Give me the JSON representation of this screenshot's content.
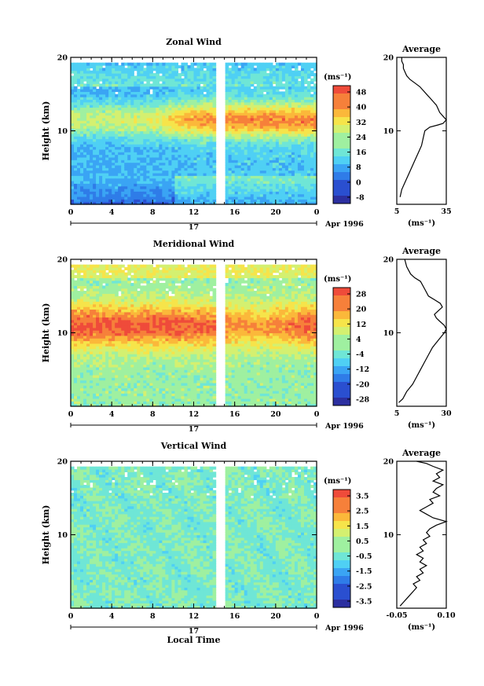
{
  "chart_data": [
    {
      "type": "heatmap",
      "title": "Zonal Wind",
      "ylabel": "Height (km)",
      "ylim": [
        0,
        20
      ],
      "y_ticks": [
        "20",
        "10"
      ],
      "xlim": [
        0,
        24
      ],
      "x_ticks": [
        "0",
        "4",
        "8",
        "12",
        "16",
        "20",
        "0"
      ],
      "date_axis": {
        "day": "17",
        "label": "Apr 1996"
      },
      "colorbar": {
        "unit": "(ms⁻¹)",
        "ticks": [
          "48",
          "40",
          "32",
          "24",
          "16",
          "8",
          "0",
          "-8"
        ],
        "min": -8,
        "max": 52
      },
      "profile": {
        "title": "Average",
        "y_ticks": [
          "20",
          "10"
        ],
        "x_ticks": [
          "5",
          "35"
        ],
        "xlim": [
          5,
          35
        ],
        "xlabel": "(ms⁻¹)",
        "points": [
          [
            7,
            1
          ],
          [
            8,
            2
          ],
          [
            10,
            3
          ],
          [
            12,
            4
          ],
          [
            14,
            5
          ],
          [
            16,
            6
          ],
          [
            18,
            7
          ],
          [
            20,
            8
          ],
          [
            21,
            9
          ],
          [
            22,
            10
          ],
          [
            25,
            10.5
          ],
          [
            30,
            10.8
          ],
          [
            33,
            11
          ],
          [
            35,
            11.5
          ],
          [
            33,
            12
          ],
          [
            31,
            12.5
          ],
          [
            30,
            13
          ],
          [
            29,
            13.5
          ],
          [
            27,
            14
          ],
          [
            25,
            14.5
          ],
          [
            23,
            15
          ],
          [
            21,
            15.5
          ],
          [
            19,
            16
          ],
          [
            16,
            16.5
          ],
          [
            13,
            17
          ],
          [
            11,
            17.5
          ],
          [
            10,
            18
          ],
          [
            9,
            18.5
          ],
          [
            9,
            19
          ],
          [
            8,
            19.5
          ],
          [
            8,
            20
          ]
        ]
      }
    },
    {
      "type": "heatmap",
      "title": "Meridional Wind",
      "ylabel": "Height (km)",
      "ylim": [
        0,
        20
      ],
      "y_ticks": [
        "20",
        "10"
      ],
      "xlim": [
        0,
        24
      ],
      "x_ticks": [
        "0",
        "4",
        "8",
        "12",
        "16",
        "20",
        "0"
      ],
      "date_axis": {
        "day": "17",
        "label": "Apr 1996"
      },
      "colorbar": {
        "unit": "(ms⁻¹)",
        "ticks": [
          "28",
          "20",
          "12",
          "4",
          "-4",
          "-12",
          "-20",
          "-28"
        ],
        "min": -32,
        "max": 32
      },
      "profile": {
        "title": "Average",
        "y_ticks": [
          "20",
          "10"
        ],
        "x_ticks": [
          "5",
          "30"
        ],
        "xlim": [
          5,
          30
        ],
        "xlabel": "(ms⁻¹)",
        "points": [
          [
            6,
            0.5
          ],
          [
            8,
            1
          ],
          [
            10,
            2
          ],
          [
            13,
            3
          ],
          [
            15,
            4
          ],
          [
            17,
            5
          ],
          [
            19,
            6
          ],
          [
            21,
            7
          ],
          [
            23,
            8
          ],
          [
            26,
            9
          ],
          [
            29,
            10
          ],
          [
            30,
            10.5
          ],
          [
            29,
            11
          ],
          [
            27,
            11.5
          ],
          [
            25,
            12
          ],
          [
            24,
            12.5
          ],
          [
            26,
            13
          ],
          [
            28,
            13.5
          ],
          [
            27,
            14
          ],
          [
            24,
            14.5
          ],
          [
            21,
            15
          ],
          [
            19,
            16
          ],
          [
            17,
            17
          ],
          [
            14,
            17.5
          ],
          [
            12,
            18
          ],
          [
            10,
            19
          ],
          [
            9,
            20
          ]
        ]
      }
    },
    {
      "type": "heatmap",
      "title": "Vertical Wind",
      "ylabel": "Height (km)",
      "ylim": [
        0,
        20
      ],
      "y_ticks": [
        "20",
        "10"
      ],
      "xlim": [
        0,
        24
      ],
      "x_ticks": [
        "0",
        "4",
        "8",
        "12",
        "16",
        "20",
        "0"
      ],
      "date_axis": {
        "day": "17",
        "label": "Apr 1996"
      },
      "xlabel": "Local Time",
      "colorbar": {
        "unit": "(ms⁻¹)",
        "ticks": [
          "3.5",
          "2.5",
          "1.5",
          "0.5",
          "-0.5",
          "-1.5",
          "-2.5",
          "-3.5"
        ],
        "min": -4,
        "max": 4
      },
      "profile": {
        "title": "Average",
        "y_ticks": [
          "20",
          "10"
        ],
        "x_ticks": [
          "-0.05",
          "0.10"
        ],
        "xlim": [
          -0.05,
          0.1
        ],
        "xlabel": "(ms⁻¹)",
        "points": [
          [
            -0.04,
            0.3
          ],
          [
            -0.03,
            0.8
          ],
          [
            -0.02,
            1.3
          ],
          [
            -0.01,
            1.8
          ],
          [
            0.0,
            2.3
          ],
          [
            0.01,
            2.8
          ],
          [
            0.0,
            3.3
          ],
          [
            0.02,
            3.8
          ],
          [
            0.01,
            4.3
          ],
          [
            0.03,
            4.8
          ],
          [
            0.02,
            5.3
          ],
          [
            0.04,
            5.8
          ],
          [
            0.02,
            6.3
          ],
          [
            0.03,
            6.8
          ],
          [
            0.01,
            7.3
          ],
          [
            0.03,
            7.8
          ],
          [
            0.02,
            8.3
          ],
          [
            0.04,
            8.8
          ],
          [
            0.03,
            9.3
          ],
          [
            0.05,
            9.8
          ],
          [
            0.04,
            10.3
          ],
          [
            0.05,
            10.8
          ],
          [
            0.07,
            11.3
          ],
          [
            0.1,
            11.8
          ],
          [
            0.06,
            12.3
          ],
          [
            0.04,
            12.8
          ],
          [
            0.02,
            13.3
          ],
          [
            0.04,
            13.8
          ],
          [
            0.06,
            14.3
          ],
          [
            0.05,
            14.8
          ],
          [
            0.08,
            15.3
          ],
          [
            0.06,
            15.8
          ],
          [
            0.07,
            16.3
          ],
          [
            0.09,
            16.8
          ],
          [
            0.06,
            17.3
          ],
          [
            0.08,
            17.8
          ],
          [
            0.07,
            18.3
          ],
          [
            0.09,
            18.8
          ],
          [
            0.06,
            19.3
          ],
          [
            0.04,
            19.7
          ],
          [
            0.01,
            20
          ]
        ]
      }
    }
  ]
}
